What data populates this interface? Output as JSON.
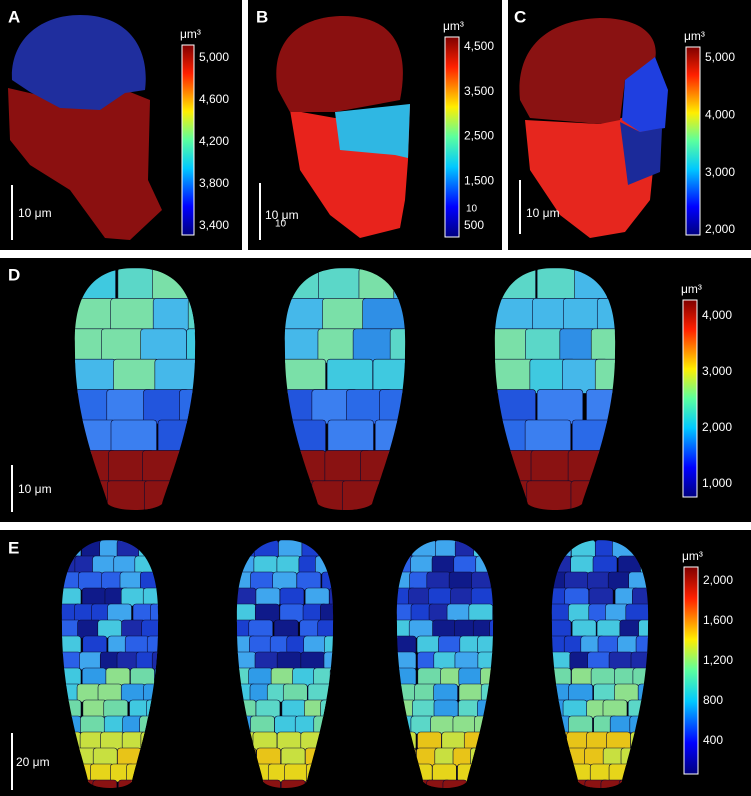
{
  "panels": [
    {
      "label": "A",
      "unit": "μm³",
      "colorbar_ticks": [
        "5,000",
        "4,600",
        "4,200",
        "3,800",
        "3,400"
      ],
      "scale_bar": "10 μm"
    },
    {
      "label": "B",
      "unit": "μm³",
      "colorbar_ticks": [
        "4,500",
        "3,500",
        "2,500",
        "1,500",
        "500"
      ],
      "scale_bar": "10 μm",
      "stray_labels": [
        "10",
        "10"
      ]
    },
    {
      "label": "C",
      "unit": "μm³",
      "colorbar_ticks": [
        "5,000",
        "4,000",
        "3,000",
        "2,000"
      ],
      "scale_bar": "10 μm"
    },
    {
      "label": "D",
      "unit": "μm³",
      "colorbar_ticks": [
        "4,000",
        "3,000",
        "2,000",
        "1,000"
      ],
      "scale_bar": "10 μm"
    },
    {
      "label": "E",
      "unit": "μm³",
      "colorbar_ticks": [
        "2,000",
        "1,600",
        "1,200",
        "800",
        "400"
      ],
      "scale_bar": "20 μm"
    }
  ]
}
